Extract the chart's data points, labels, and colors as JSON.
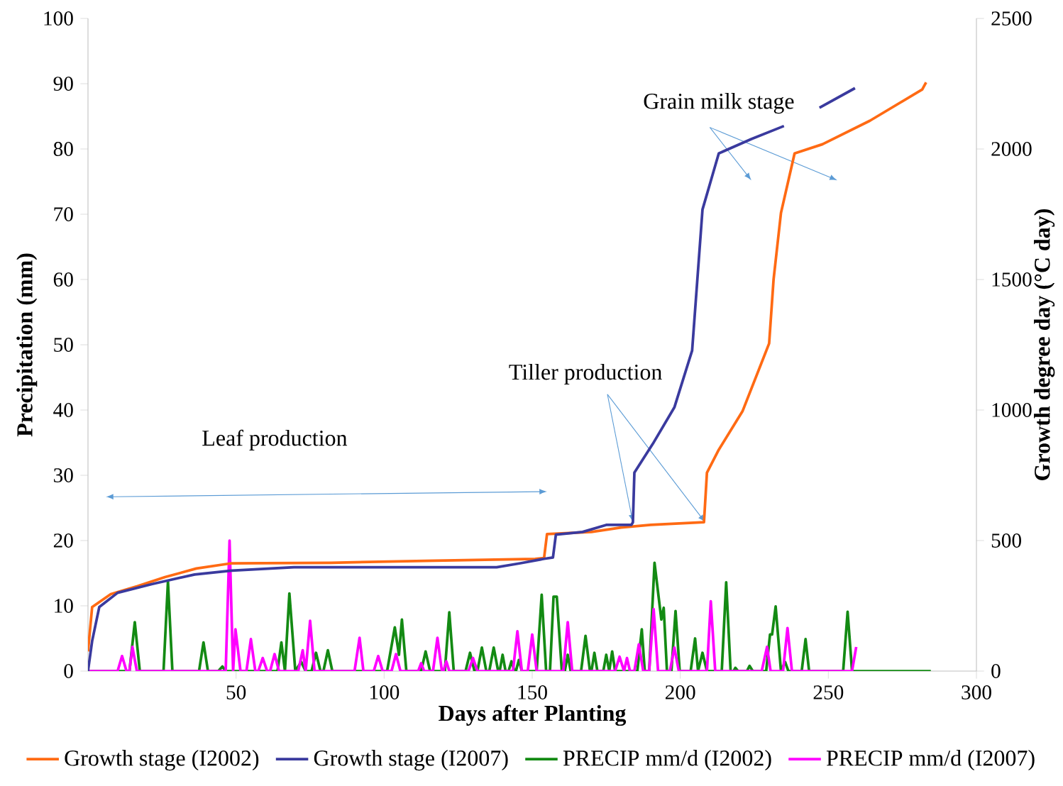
{
  "chart_data": {
    "type": "line",
    "xlabel": "Days after Planting",
    "ylabel": "Precipitation (mm)",
    "y2label": "Growth degree day (°C day)",
    "xlim": [
      0,
      300
    ],
    "xticks": [
      50,
      100,
      150,
      200,
      250,
      300
    ],
    "ylim": [
      0,
      100
    ],
    "yticks": [
      0,
      10,
      20,
      30,
      40,
      50,
      60,
      70,
      80,
      90,
      100
    ],
    "y2lim": [
      0,
      2500
    ],
    "y2ticks": [
      0,
      500,
      1000,
      1500,
      2000,
      2500
    ],
    "legend": "bottom",
    "annotations": [
      "Leaf production",
      {
        "text": "Tiller production",
        "x": 184,
        "y": 22.8
      },
      "Grain milk stage"
    ],
    "series": [
      {
        "name": "Growth stage (I2002)",
        "color": "#ff6a13",
        "axis": "y2",
        "x": [
          0,
          1.4,
          7.7,
          16.7,
          26,
          36.6,
          48.5,
          82,
          117,
          151,
          154,
          155,
          170,
          180,
          190,
          208,
          209,
          213,
          221,
          230,
          231.5,
          234,
          238.6,
          248,
          264,
          281.7,
          283
        ],
        "values": [
          75,
          245,
          295,
          325,
          360,
          393,
          413,
          415,
          423,
          430,
          433,
          525,
          533,
          550,
          560,
          570,
          760,
          848,
          995,
          1255,
          1500,
          1755,
          1983,
          2018,
          2108,
          2228,
          2255
        ]
      },
      {
        "name": "Growth stage (I2007)",
        "color": "#3a3a9e",
        "axis": "y2",
        "x": [
          0,
          1.4,
          3.8,
          10,
          21.5,
          36,
          48.5,
          69.5,
          138,
          146,
          154,
          157,
          158,
          167,
          175,
          183.5,
          184,
          184.5,
          190.7,
          198,
          204,
          207.5,
          213,
          224,
          235,
          241,
          247,
          259
        ],
        "values": [
          0,
          115,
          245,
          300,
          333,
          370,
          385,
          398,
          398,
          413,
          430,
          435,
          523,
          533,
          560,
          560,
          570,
          760,
          870,
          1010,
          1228,
          1768,
          1983,
          2038,
          2088,
          null,
          2158,
          2233
        ]
      },
      {
        "name": "PRECIP mm/d (I2002)",
        "color": "#138a13",
        "x": [
          0,
          14,
          15.8,
          17.5,
          25.5,
          27,
          28.5,
          37.5,
          39,
          40.5,
          44,
          45.4,
          46.5,
          64,
          65.3,
          66.5,
          68,
          70,
          72,
          73.5,
          75.5,
          77,
          78.5,
          79.5,
          81,
          82.5,
          101,
          103.6,
          105,
          106,
          107.5,
          112.5,
          114,
          115.5,
          120.5,
          122,
          123.5,
          127.5,
          129,
          130.5,
          131.5,
          133,
          134.5,
          135.5,
          137,
          138.5,
          139,
          140,
          141,
          142,
          143,
          144,
          144.5,
          145.5,
          146.5,
          151.5,
          153.2,
          154.7,
          156,
          157.2,
          158.3,
          160,
          161,
          162,
          163,
          166.5,
          168,
          169.5,
          170,
          171,
          172,
          174,
          175,
          176,
          177,
          178,
          185.5,
          187,
          188,
          189.5,
          191.3,
          193.6,
          194.4,
          195.5,
          197,
          198.4,
          199.8,
          203.5,
          205,
          206,
          207.5,
          209,
          214,
          215.5,
          217,
          218,
          218.6,
          219.5,
          222.5,
          223.4,
          224.5,
          229,
          230.3,
          231,
          232.2,
          234,
          235.4,
          236.5,
          241,
          242.3,
          243.5,
          255,
          256.5,
          258,
          284.6
        ],
        "values": [
          0,
          0,
          7.5,
          0,
          0,
          13.7,
          0,
          0,
          4.4,
          0,
          0,
          0.7,
          0,
          0,
          4.4,
          0,
          11.9,
          0,
          1.4,
          0,
          0,
          2.8,
          0,
          0,
          3.2,
          0,
          0,
          6.7,
          2.5,
          7.9,
          0,
          0,
          3,
          0,
          0,
          9,
          0,
          0,
          2.8,
          0,
          0,
          3.6,
          0,
          0,
          3.6,
          0,
          0,
          2.5,
          0,
          0,
          1.5,
          0,
          0,
          1.7,
          0,
          0,
          11.7,
          0,
          0,
          11.4,
          11.4,
          0,
          0,
          2.5,
          0,
          0,
          5.4,
          0,
          0,
          2.8,
          0,
          0,
          2.5,
          0,
          3,
          0,
          0,
          6.4,
          0,
          0,
          16.6,
          7.9,
          9.7,
          0,
          0,
          9.2,
          0,
          0,
          5,
          0,
          2.8,
          0,
          0,
          13.6,
          0,
          0,
          0.5,
          0,
          0,
          0.8,
          0,
          0,
          5.6,
          5.6,
          9.9,
          0,
          1.4,
          0,
          0,
          4.9,
          0,
          0,
          9.1,
          0,
          0
        ]
      },
      {
        "name": "PRECIP mm/d (I2007)",
        "color": "#ff00ff",
        "x": [
          0,
          10,
          11.5,
          13,
          14,
          15,
          16.5,
          46.5,
          47.8,
          49,
          49.8,
          51.5,
          53.5,
          55,
          56.5,
          57.5,
          59,
          60.5,
          61.5,
          63,
          64.5,
          71,
          72.5,
          73.5,
          75,
          76.5,
          90,
          91.7,
          93,
          96.5,
          98,
          99.5,
          102.5,
          104,
          105.5,
          111.5,
          112.5,
          113.5,
          116.5,
          118,
          119.5,
          120,
          121,
          122,
          128.5,
          130,
          131.5,
          143.5,
          145,
          146.5,
          148.5,
          150,
          151.5,
          160.5,
          162,
          163.5,
          178,
          179.5,
          181,
          182,
          183,
          184.5,
          186,
          187.5,
          189.5,
          191,
          192.5,
          196.5,
          198,
          199.5,
          209,
          210.3,
          211.8,
          227.5,
          229.3,
          230.5,
          234.7,
          236.2,
          237.7,
          258,
          259.4
        ],
        "values": [
          0,
          0,
          2.3,
          0,
          0,
          3.7,
          0,
          0,
          20,
          0,
          6.4,
          0,
          0,
          4.9,
          0,
          0,
          2,
          0,
          0,
          2.6,
          0,
          0,
          3.2,
          0,
          7.7,
          0,
          0,
          5.1,
          0,
          0,
          2.3,
          0,
          0,
          2.6,
          0,
          0,
          1.2,
          0,
          0,
          5.1,
          0,
          0,
          1.5,
          0,
          0,
          2,
          0,
          0,
          6.1,
          0,
          0,
          5.6,
          0,
          0,
          7.5,
          0,
          0,
          2.2,
          0,
          2,
          0,
          0,
          4.1,
          0,
          0,
          9.5,
          0,
          0,
          3.6,
          0,
          0,
          10.7,
          0,
          0,
          3.7,
          0,
          0,
          6.6,
          0,
          0,
          3.7
        ]
      }
    ]
  }
}
